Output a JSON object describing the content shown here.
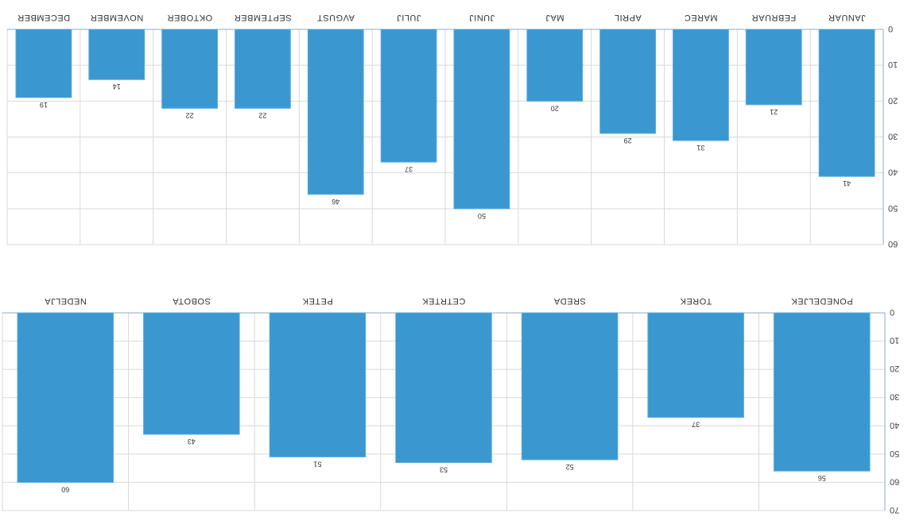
{
  "chart_data": [
    {
      "type": "bar",
      "categories": [
        "JANUAR",
        "FEBRUAR",
        "MAREC",
        "APRIL",
        "MAJ",
        "JUNIJ",
        "JULIJ",
        "AVGUST",
        "SEPTEMBER",
        "OKTOBER",
        "NOVEMBER",
        "DECEMBER"
      ],
      "values": [
        41,
        21,
        31,
        29,
        20,
        50,
        37,
        46,
        22,
        22,
        14,
        19
      ],
      "ylim": [
        0,
        60
      ],
      "yticks": [
        0,
        10,
        20,
        30,
        40,
        50,
        60
      ],
      "grid": true,
      "bar_color": "#3a97cf",
      "orientation": "image displayed rotated 180 degrees"
    },
    {
      "type": "bar",
      "categories": [
        "PONEDELJEK",
        "TOREK",
        "SREDA",
        "CETRTEK",
        "PETEK",
        "SOBOTA",
        "NEDELJA"
      ],
      "values": [
        56,
        37,
        52,
        53,
        51,
        43,
        60
      ],
      "ylim": [
        0,
        70
      ],
      "yticks": [
        0,
        10,
        20,
        30,
        40,
        50,
        60,
        70
      ],
      "grid": true,
      "bar_color": "#3a97cf",
      "orientation": "image displayed rotated 180 degrees"
    }
  ]
}
